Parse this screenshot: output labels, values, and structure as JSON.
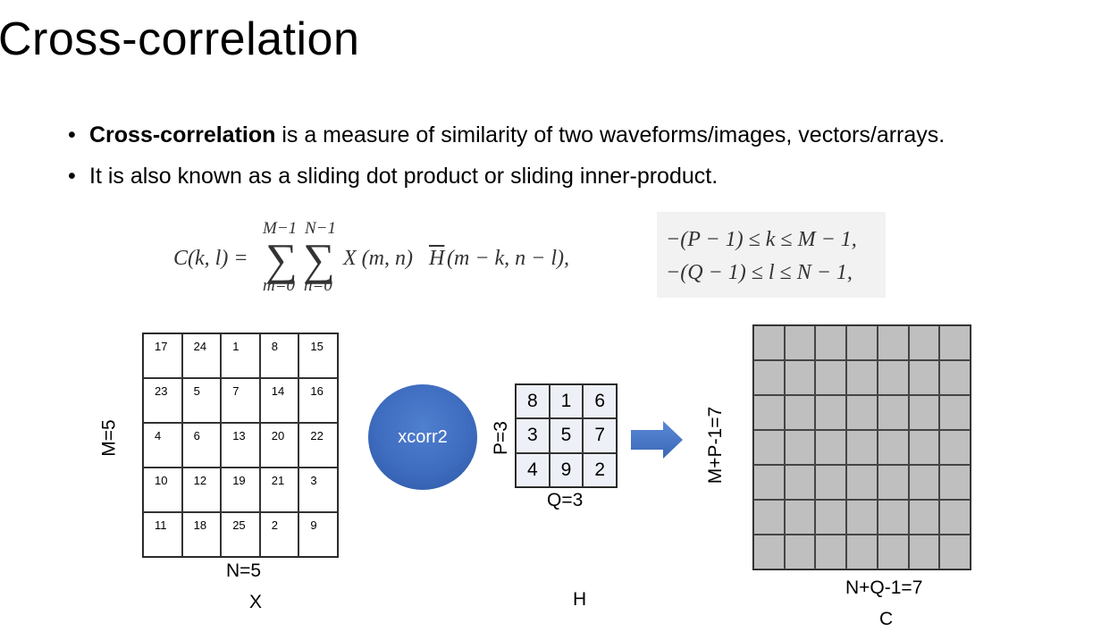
{
  "slide": {
    "title": "Cross-correlation",
    "bullets": [
      {
        "bold": "Cross-correlation",
        "text": " is a measure of similarity of two waveforms/images, vectors/arrays."
      },
      {
        "bold": "",
        "text": "It is also known as a sliding dot product or sliding inner-product."
      }
    ]
  },
  "formula": {
    "lhs": "C(k, l) =",
    "sum1_upper": "M−1",
    "sum2_upper": "N−1",
    "sum1_lower": "m=0",
    "sum2_lower": "n=0",
    "sigma": "∑",
    "term": "X (m, n)",
    "hbar_letter": "H",
    "hbar_args": "(m − k, n − l),",
    "bounds": [
      "−(P − 1) ≤ k ≤ M − 1,",
      "−(Q − 1) ≤ l ≤ N − 1,"
    ]
  },
  "matrix_x": {
    "rows": [
      [
        "17",
        "24",
        "1",
        "8",
        "15"
      ],
      [
        "23",
        "5",
        "7",
        "14",
        "16"
      ],
      [
        "4",
        "6",
        "13",
        "20",
        "22"
      ],
      [
        "10",
        "12",
        "19",
        "21",
        "3"
      ],
      [
        "11",
        "18",
        "25",
        "2",
        "9"
      ]
    ],
    "row_label": "M=5",
    "col_label": "N=5",
    "name": "X"
  },
  "operation": {
    "label": "xcorr2",
    "color": "#3e6cbf"
  },
  "matrix_h": {
    "rows": [
      [
        "8",
        "1",
        "6"
      ],
      [
        "3",
        "5",
        "7"
      ],
      [
        "4",
        "9",
        "2"
      ]
    ],
    "row_label": "P=3",
    "col_label": "Q=3",
    "name": "H"
  },
  "arrow": {
    "color": "#4472c4"
  },
  "matrix_c": {
    "rows": 7,
    "cols": 7,
    "fill_color": "#bfbfbf",
    "row_label": "M+P-1=7",
    "col_label": "N+Q-1=7",
    "name": "C"
  }
}
